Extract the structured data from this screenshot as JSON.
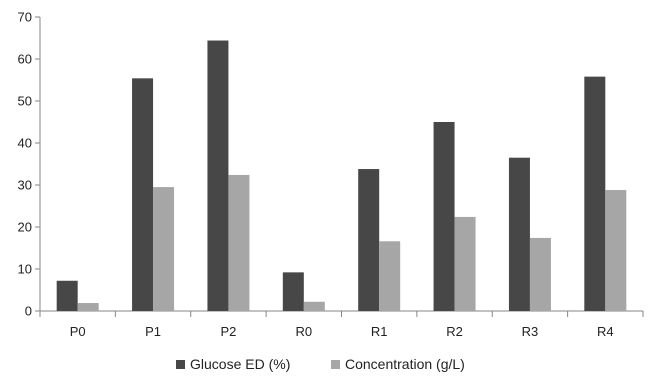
{
  "chart_data": {
    "type": "bar",
    "categories": [
      "P0",
      "P1",
      "P2",
      "R0",
      "R1",
      "R2",
      "R3",
      "R4"
    ],
    "series": [
      {
        "name": "Glucose ED (%)",
        "color": "#474747",
        "values": [
          7.2,
          55.4,
          64.4,
          9.2,
          33.8,
          45.0,
          36.5,
          55.8
        ]
      },
      {
        "name": "Concentration (g/L)",
        "color": "#a6a6a6",
        "values": [
          1.9,
          29.5,
          32.4,
          2.2,
          16.6,
          22.4,
          17.4,
          28.8
        ]
      }
    ],
    "yticks": [
      "0",
      "10",
      "20",
      "30",
      "40",
      "50",
      "60",
      "70"
    ],
    "ylim": [
      0,
      70
    ],
    "grid": false,
    "legend_position": "bottom-center",
    "title": "",
    "xlabel": "",
    "ylabel": ""
  }
}
